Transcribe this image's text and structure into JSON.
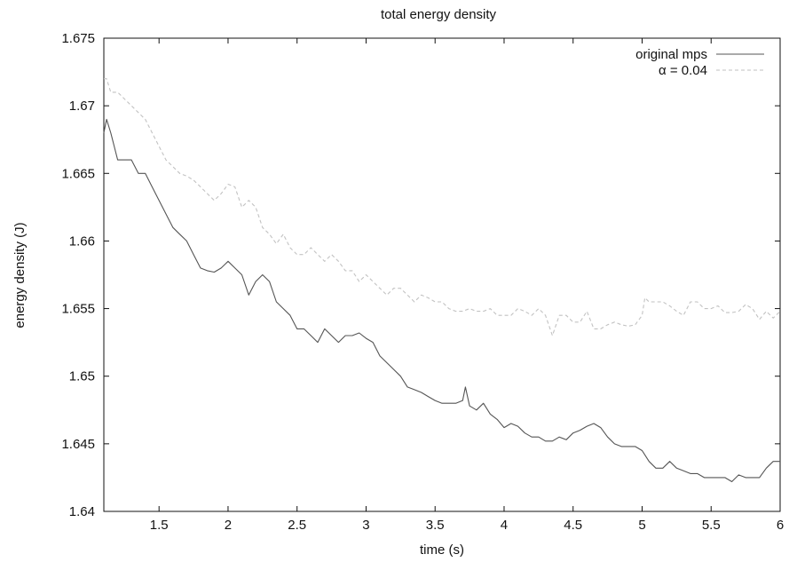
{
  "chart_data": {
    "type": "line",
    "title": "total energy density",
    "xlabel": "time (s)",
    "ylabel": "energy density (J)",
    "xlim": [
      1.1,
      6
    ],
    "ylim": [
      1.64,
      1.675
    ],
    "x_ticks": [
      1.5,
      2,
      2.5,
      3,
      3.5,
      4,
      4.5,
      5,
      5.5,
      6
    ],
    "x_tick_labels": [
      "1.5",
      "2",
      "2.5",
      "3",
      "3.5",
      "4",
      "4.5",
      "5",
      "5.5",
      "6"
    ],
    "y_ticks": [
      1.64,
      1.645,
      1.65,
      1.655,
      1.66,
      1.665,
      1.67,
      1.675
    ],
    "y_tick_labels": [
      "1.64",
      "1.645",
      "1.65",
      "1.655",
      "1.66",
      "1.665",
      "1.67",
      "1.675"
    ],
    "grid": false,
    "legend_position": "top-right",
    "series": [
      {
        "name": "original mps",
        "color": "#555555",
        "style": "solid",
        "x": [
          1.1,
          1.12,
          1.15,
          1.2,
          1.25,
          1.3,
          1.35,
          1.4,
          1.45,
          1.5,
          1.55,
          1.6,
          1.65,
          1.7,
          1.75,
          1.8,
          1.85,
          1.9,
          1.95,
          2.0,
          2.05,
          2.1,
          2.15,
          2.2,
          2.25,
          2.3,
          2.35,
          2.4,
          2.45,
          2.5,
          2.55,
          2.6,
          2.65,
          2.7,
          2.75,
          2.8,
          2.85,
          2.9,
          2.95,
          3.0,
          3.05,
          3.1,
          3.15,
          3.2,
          3.25,
          3.3,
          3.35,
          3.4,
          3.45,
          3.5,
          3.55,
          3.6,
          3.65,
          3.7,
          3.72,
          3.75,
          3.8,
          3.85,
          3.9,
          3.95,
          4.0,
          4.05,
          4.1,
          4.15,
          4.2,
          4.25,
          4.3,
          4.35,
          4.4,
          4.45,
          4.5,
          4.55,
          4.6,
          4.65,
          4.7,
          4.75,
          4.8,
          4.85,
          4.9,
          4.95,
          5.0,
          5.05,
          5.1,
          5.15,
          5.2,
          5.25,
          5.3,
          5.35,
          5.4,
          5.45,
          5.5,
          5.55,
          5.6,
          5.65,
          5.7,
          5.75,
          5.8,
          5.85,
          5.9,
          5.95,
          6.0
        ],
        "y": [
          1.668,
          1.669,
          1.668,
          1.666,
          1.666,
          1.666,
          1.665,
          1.665,
          1.664,
          1.663,
          1.662,
          1.661,
          1.6605,
          1.66,
          1.659,
          1.658,
          1.6578,
          1.6577,
          1.658,
          1.6585,
          1.658,
          1.6575,
          1.656,
          1.657,
          1.6575,
          1.657,
          1.6555,
          1.655,
          1.6545,
          1.6535,
          1.6535,
          1.653,
          1.6525,
          1.6535,
          1.653,
          1.6525,
          1.653,
          1.653,
          1.6532,
          1.6528,
          1.6525,
          1.6515,
          1.651,
          1.6505,
          1.65,
          1.6492,
          1.649,
          1.6488,
          1.6485,
          1.6482,
          1.648,
          1.648,
          1.648,
          1.6482,
          1.6492,
          1.6478,
          1.6475,
          1.648,
          1.6472,
          1.6468,
          1.6462,
          1.6465,
          1.6463,
          1.6458,
          1.6455,
          1.6455,
          1.6452,
          1.6452,
          1.6455,
          1.6453,
          1.6458,
          1.646,
          1.6463,
          1.6465,
          1.6462,
          1.6455,
          1.645,
          1.6448,
          1.6448,
          1.6448,
          1.6445,
          1.6437,
          1.6432,
          1.6432,
          1.6437,
          1.6432,
          1.643,
          1.6428,
          1.6428,
          1.6425,
          1.6425,
          1.6425,
          1.6425,
          1.6422,
          1.6427,
          1.6425,
          1.6425,
          1.6425,
          1.6432,
          1.6437,
          1.6437
        ]
      },
      {
        "name": "α = 0.04",
        "color": "#c2c2c2",
        "style": "dashed",
        "x": [
          1.1,
          1.12,
          1.15,
          1.2,
          1.25,
          1.3,
          1.35,
          1.4,
          1.45,
          1.5,
          1.55,
          1.6,
          1.65,
          1.7,
          1.75,
          1.8,
          1.85,
          1.9,
          1.95,
          2.0,
          2.05,
          2.1,
          2.15,
          2.2,
          2.25,
          2.3,
          2.35,
          2.4,
          2.45,
          2.5,
          2.55,
          2.6,
          2.65,
          2.7,
          2.75,
          2.8,
          2.85,
          2.9,
          2.95,
          3.0,
          3.05,
          3.1,
          3.15,
          3.2,
          3.25,
          3.3,
          3.35,
          3.4,
          3.45,
          3.5,
          3.55,
          3.6,
          3.65,
          3.7,
          3.75,
          3.8,
          3.85,
          3.9,
          3.95,
          4.0,
          4.05,
          4.1,
          4.15,
          4.2,
          4.25,
          4.3,
          4.35,
          4.4,
          4.45,
          4.5,
          4.55,
          4.6,
          4.65,
          4.7,
          4.75,
          4.8,
          4.85,
          4.9,
          4.95,
          5.0,
          5.02,
          5.05,
          5.1,
          5.15,
          5.2,
          5.25,
          5.3,
          5.35,
          5.4,
          5.45,
          5.5,
          5.55,
          5.6,
          5.65,
          5.7,
          5.75,
          5.8,
          5.85,
          5.9,
          5.95,
          6.0
        ],
        "y": [
          1.672,
          1.672,
          1.671,
          1.671,
          1.6705,
          1.67,
          1.6695,
          1.669,
          1.668,
          1.667,
          1.666,
          1.6655,
          1.665,
          1.6648,
          1.6645,
          1.664,
          1.6635,
          1.663,
          1.6635,
          1.6642,
          1.664,
          1.6625,
          1.663,
          1.6625,
          1.661,
          1.6605,
          1.6598,
          1.6605,
          1.6595,
          1.659,
          1.659,
          1.6595,
          1.659,
          1.6585,
          1.659,
          1.6585,
          1.6578,
          1.6578,
          1.657,
          1.6575,
          1.657,
          1.6565,
          1.656,
          1.6565,
          1.6565,
          1.656,
          1.6555,
          1.656,
          1.6558,
          1.6555,
          1.6555,
          1.655,
          1.6548,
          1.6548,
          1.655,
          1.6548,
          1.6548,
          1.655,
          1.6545,
          1.6545,
          1.6545,
          1.655,
          1.6548,
          1.6545,
          1.655,
          1.6545,
          1.653,
          1.6545,
          1.6545,
          1.654,
          1.654,
          1.6548,
          1.6535,
          1.6535,
          1.6538,
          1.654,
          1.6538,
          1.6537,
          1.6538,
          1.6545,
          1.6558,
          1.6555,
          1.6555,
          1.6555,
          1.6552,
          1.6548,
          1.6545,
          1.6555,
          1.6555,
          1.655,
          1.655,
          1.6552,
          1.6547,
          1.6547,
          1.6548,
          1.6553,
          1.655,
          1.6542,
          1.6548,
          1.6543,
          1.6548
        ]
      }
    ]
  }
}
